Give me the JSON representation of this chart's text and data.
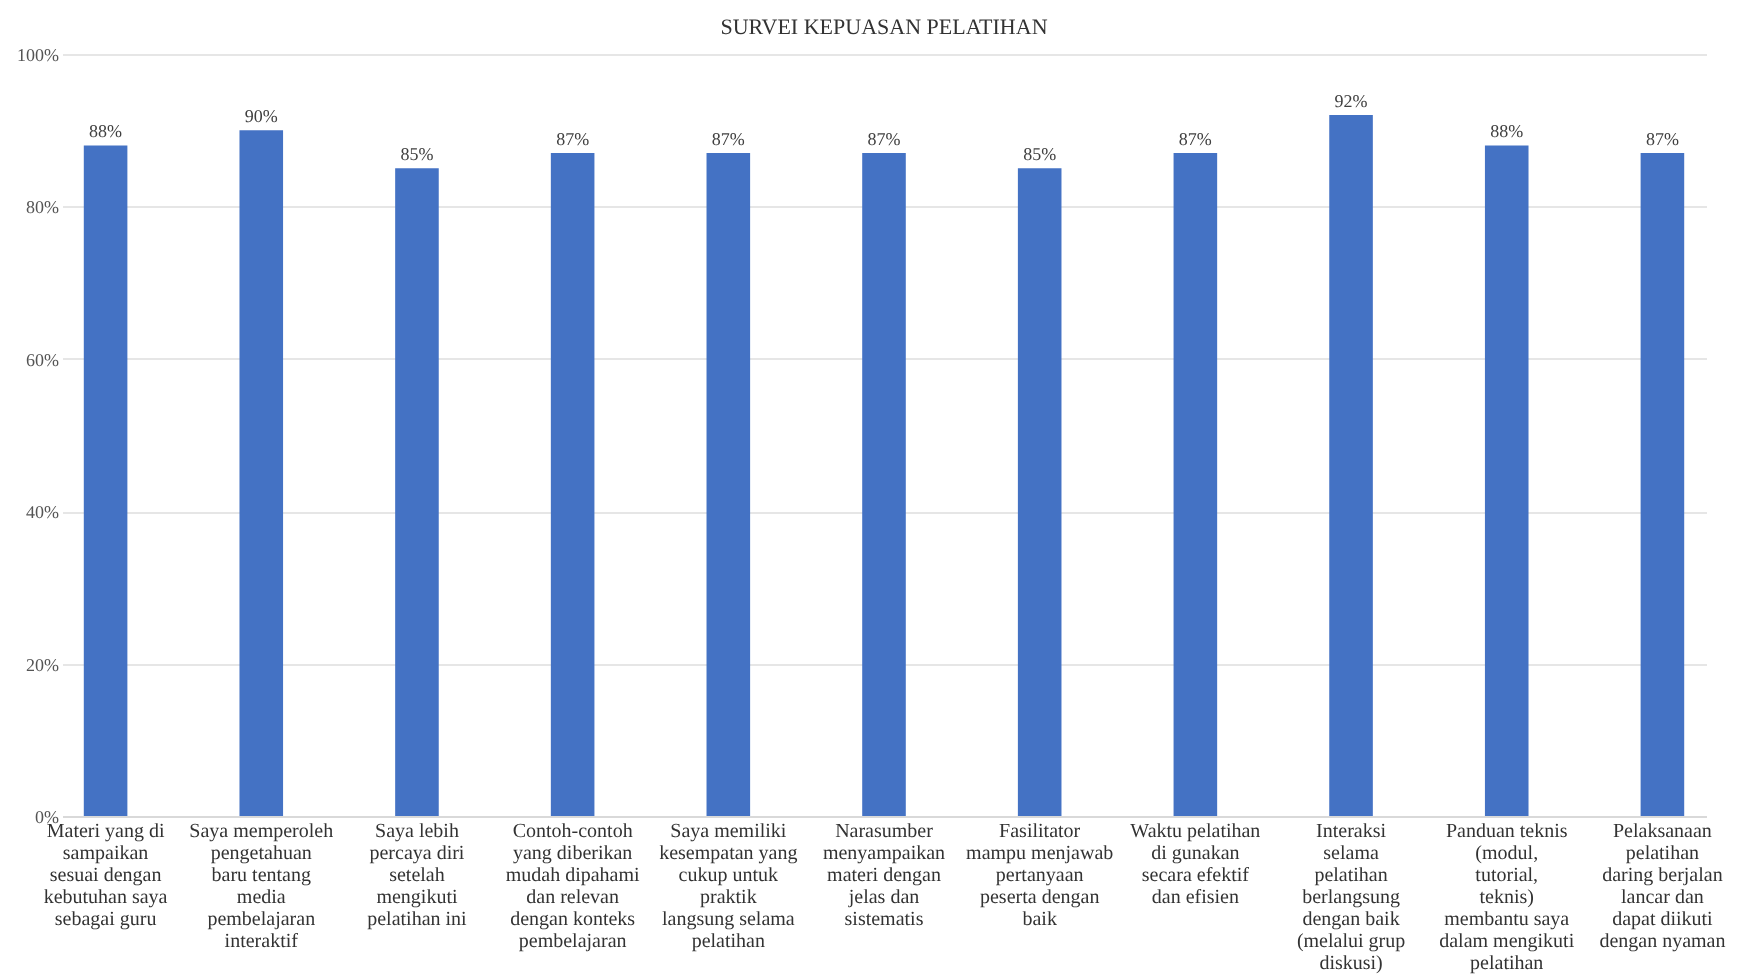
{
  "chart_data": {
    "type": "bar",
    "title": "SURVEI KEPUASAN PELATIHAN",
    "categories": [
      "Materi yang di sampaikan sesuai dengan kebutuhan saya sebagai guru",
      "Saya memperoleh pengetahuan baru tentang media pembelajaran interaktif",
      "Saya lebih percaya diri setelah mengikuti pelatihan ini",
      "Contoh-contoh yang diberikan mudah dipahami dan relevan dengan konteks pembelajaran",
      "Saya memiliki kesempatan yang cukup untuk praktik langsung selama pelatihan",
      "Narasumber menyampaikan materi dengan jelas dan sistematis",
      "Fasilitator mampu menjawab pertanyaan peserta dengan baik",
      "Waktu pelatihan di gunakan secara efektif dan efisien",
      "Interaksi selama pelatihan berlangsung dengan baik (melalui grup diskusi)",
      "Panduan teknis (modul, tutorial, teknis) membantu saya dalam mengikuti pelatihan",
      "Pelaksanaan pelatihan daring berjalan lancar dan dapat diikuti dengan nyaman"
    ],
    "values": [
      88,
      90,
      85,
      87,
      87,
      87,
      85,
      87,
      92,
      88,
      87
    ],
    "value_labels": [
      "88%",
      "90%",
      "85%",
      "87%",
      "87%",
      "87%",
      "85%",
      "87%",
      "92%",
      "88%",
      "87%"
    ],
    "color": "#4472c4",
    "ylim": [
      0,
      100
    ],
    "yticks": [
      {
        "value": 0,
        "label": "0%"
      },
      {
        "value": 20,
        "label": "20%"
      },
      {
        "value": 40,
        "label": "40%"
      },
      {
        "value": 60,
        "label": "60%"
      },
      {
        "value": 80,
        "label": "80%"
      },
      {
        "value": 100,
        "label": "100%"
      }
    ],
    "grid": "y"
  }
}
